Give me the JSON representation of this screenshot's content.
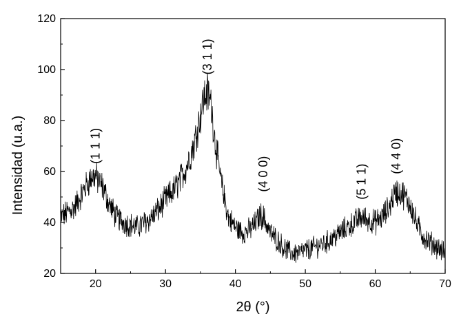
{
  "chart_data": {
    "type": "line",
    "title": "",
    "xlabel": "2θ (°)",
    "ylabel": "Intensidad (u.a.)",
    "xlim": [
      15,
      70
    ],
    "ylim": [
      20,
      120
    ],
    "x_ticks": [
      20,
      30,
      40,
      50,
      60,
      70
    ],
    "y_ticks": [
      20,
      40,
      60,
      80,
      100,
      120
    ],
    "grid": false,
    "legend": "none",
    "line_color": "#000000",
    "series": [
      {
        "x": [
          15,
          16,
          17,
          18,
          19,
          19.5,
          20,
          21,
          22,
          23,
          24,
          25,
          26,
          27,
          28,
          29,
          30,
          31,
          32,
          33,
          34,
          35,
          35.5,
          36,
          36.5,
          37,
          38,
          39,
          40,
          41,
          42,
          43,
          43.5,
          44,
          45,
          46,
          47,
          48,
          49,
          50,
          51,
          52,
          53,
          54,
          55,
          56,
          57,
          58,
          59,
          60,
          61,
          62,
          62.5,
          63,
          64,
          65,
          66,
          67,
          68,
          69,
          70
        ],
        "values": [
          42,
          44,
          46,
          51,
          56,
          58,
          58,
          54,
          47,
          42,
          40,
          39,
          38,
          40,
          42,
          45,
          49,
          52,
          56,
          62,
          70,
          82,
          89,
          91,
          87,
          74,
          55,
          42,
          38,
          36,
          37,
          40,
          43,
          42,
          36,
          33,
          30,
          28,
          28,
          29,
          30,
          31,
          32,
          34,
          36,
          38,
          40,
          42,
          41,
          40,
          42,
          46,
          50,
          52,
          51,
          47,
          39,
          34,
          32,
          30,
          28
        ]
      }
    ],
    "annotations": [
      {
        "text": "(1 1 1)",
        "x": 20,
        "y": 63
      },
      {
        "text": "(3 1 1)",
        "x": 36,
        "y": 98
      },
      {
        "text": "(4 0 0)",
        "x": 44,
        "y": 52
      },
      {
        "text": "(5 1 1)",
        "x": 58,
        "y": 49
      },
      {
        "text": "(4 4 0)",
        "x": 63,
        "y": 59
      }
    ]
  }
}
